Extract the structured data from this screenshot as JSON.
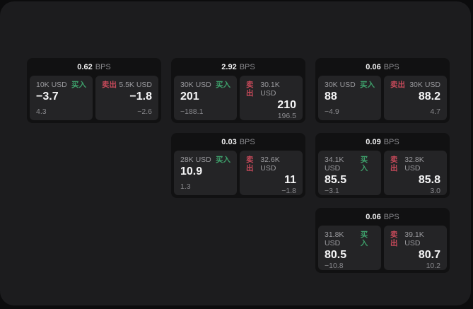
{
  "labels": {
    "bps": "BPS",
    "buy": "买入",
    "sell": "卖出"
  },
  "colors": {
    "buy": "#3ea06b",
    "sell": "#c84a5a",
    "panel": "#1c1c1e",
    "card": "#111112",
    "tile": "#242426"
  },
  "cards": [
    {
      "bps": "0.62",
      "buy": {
        "notional": "10K USD",
        "price": "−3.7",
        "delta": "4.3"
      },
      "sell": {
        "notional": "5.5K USD",
        "price": "−1.8",
        "delta": "−2.6"
      }
    },
    {
      "bps": "2.92",
      "buy": {
        "notional": "30K USD",
        "price": "201",
        "delta": "−188.1"
      },
      "sell": {
        "notional": "30.1K USD",
        "price": "210",
        "delta": "196.5"
      }
    },
    {
      "bps": "0.06",
      "buy": {
        "notional": "30K USD",
        "price": "88",
        "delta": "−4.9"
      },
      "sell": {
        "notional": "30K USD",
        "price": "88.2",
        "delta": "4.7"
      }
    },
    {
      "bps": "0.03",
      "buy": {
        "notional": "28K USD",
        "price": "10.9",
        "delta": "1.3"
      },
      "sell": {
        "notional": "32.6K USD",
        "price": "11",
        "delta": "−1.8"
      }
    },
    {
      "bps": "0.09",
      "buy": {
        "notional": "34.1K USD",
        "price": "85.5",
        "delta": "−3.1"
      },
      "sell": {
        "notional": "32.8K USD",
        "price": "85.8",
        "delta": "3.0"
      }
    },
    {
      "bps": "0.06",
      "buy": {
        "notional": "31.8K USD",
        "price": "80.5",
        "delta": "−10.8"
      },
      "sell": {
        "notional": "39.1K USD",
        "price": "80.7",
        "delta": "10.2"
      }
    }
  ]
}
